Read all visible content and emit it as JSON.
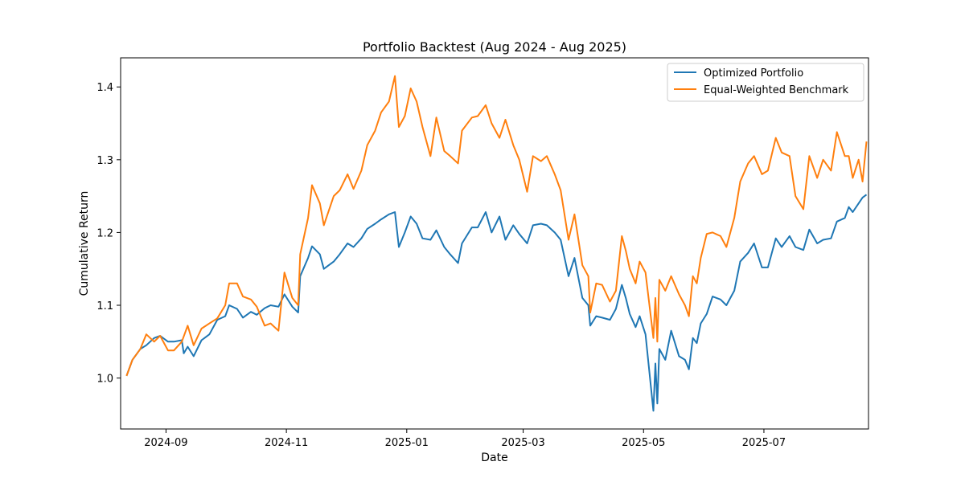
{
  "chart_data": {
    "type": "line",
    "title": "Portfolio Backtest (Aug 2024 - Aug 2025)",
    "xlabel": "Date",
    "ylabel": "Cumulative Return",
    "xlim": [
      "2024-08-09",
      "2025-08-23"
    ],
    "ylim": [
      0.93,
      1.44
    ],
    "x_ticks": [
      "2024-09",
      "2024-11",
      "2025-01",
      "2025-03",
      "2025-05",
      "2025-07"
    ],
    "y_ticks": [
      "1.0",
      "1.1",
      "1.2",
      "1.3",
      "1.4"
    ],
    "grid": false,
    "legend_position": "upper right",
    "series": [
      {
        "name": "Optimized Portfolio",
        "color": "#1f77b4",
        "points": [
          [
            "2024-08-12",
            1.003
          ],
          [
            "2024-08-15",
            1.025
          ],
          [
            "2024-08-19",
            1.04
          ],
          [
            "2024-08-22",
            1.045
          ],
          [
            "2024-08-26",
            1.055
          ],
          [
            "2024-08-29",
            1.058
          ],
          [
            "2024-09-02",
            1.05
          ],
          [
            "2024-09-05",
            1.05
          ],
          [
            "2024-09-09",
            1.052
          ],
          [
            "2024-09-10",
            1.034
          ],
          [
            "2024-09-12",
            1.043
          ],
          [
            "2024-09-15",
            1.03
          ],
          [
            "2024-09-19",
            1.052
          ],
          [
            "2024-09-23",
            1.06
          ],
          [
            "2024-09-27",
            1.08
          ],
          [
            "2024-10-01",
            1.085
          ],
          [
            "2024-10-03",
            1.1
          ],
          [
            "2024-10-07",
            1.095
          ],
          [
            "2024-10-10",
            1.083
          ],
          [
            "2024-10-14",
            1.091
          ],
          [
            "2024-10-17",
            1.087
          ],
          [
            "2024-10-21",
            1.096
          ],
          [
            "2024-10-24",
            1.1
          ],
          [
            "2024-10-28",
            1.098
          ],
          [
            "2024-10-31",
            1.115
          ],
          [
            "2024-11-04",
            1.098
          ],
          [
            "2024-11-07",
            1.09
          ],
          [
            "2024-11-08",
            1.14
          ],
          [
            "2024-11-12",
            1.165
          ],
          [
            "2024-11-14",
            1.181
          ],
          [
            "2024-11-18",
            1.17
          ],
          [
            "2024-11-20",
            1.15
          ],
          [
            "2024-11-25",
            1.16
          ],
          [
            "2024-11-28",
            1.17
          ],
          [
            "2024-12-02",
            1.185
          ],
          [
            "2024-12-05",
            1.18
          ],
          [
            "2024-12-09",
            1.192
          ],
          [
            "2024-12-12",
            1.205
          ],
          [
            "2024-12-16",
            1.212
          ],
          [
            "2024-12-19",
            1.218
          ],
          [
            "2024-12-23",
            1.225
          ],
          [
            "2024-12-26",
            1.228
          ],
          [
            "2024-12-28",
            1.18
          ],
          [
            "2024-12-31",
            1.2
          ],
          [
            "2025-01-03",
            1.222
          ],
          [
            "2025-01-06",
            1.212
          ],
          [
            "2025-01-09",
            1.192
          ],
          [
            "2025-01-13",
            1.19
          ],
          [
            "2025-01-16",
            1.203
          ],
          [
            "2025-01-20",
            1.18
          ],
          [
            "2025-01-23",
            1.17
          ],
          [
            "2025-01-27",
            1.158
          ],
          [
            "2025-01-29",
            1.185
          ],
          [
            "2025-02-03",
            1.207
          ],
          [
            "2025-02-06",
            1.207
          ],
          [
            "2025-02-10",
            1.228
          ],
          [
            "2025-02-13",
            1.2
          ],
          [
            "2025-02-17",
            1.222
          ],
          [
            "2025-02-20",
            1.19
          ],
          [
            "2025-02-24",
            1.21
          ],
          [
            "2025-02-27",
            1.198
          ],
          [
            "2025-03-03",
            1.185
          ],
          [
            "2025-03-06",
            1.21
          ],
          [
            "2025-03-10",
            1.212
          ],
          [
            "2025-03-13",
            1.21
          ],
          [
            "2025-03-17",
            1.2
          ],
          [
            "2025-03-20",
            1.19
          ],
          [
            "2025-03-24",
            1.14
          ],
          [
            "2025-03-27",
            1.165
          ],
          [
            "2025-03-31",
            1.11
          ],
          [
            "2025-04-03",
            1.1
          ],
          [
            "2025-04-04",
            1.072
          ],
          [
            "2025-04-07",
            1.085
          ],
          [
            "2025-04-10",
            1.083
          ],
          [
            "2025-04-14",
            1.08
          ],
          [
            "2025-04-17",
            1.095
          ],
          [
            "2025-04-20",
            1.128
          ],
          [
            "2025-04-22",
            1.11
          ],
          [
            "2025-04-24",
            1.088
          ],
          [
            "2025-04-27",
            1.07
          ],
          [
            "2025-04-29",
            1.085
          ],
          [
            "2025-05-02",
            1.06
          ],
          [
            "2025-05-06",
            0.955
          ],
          [
            "2025-05-07",
            1.02
          ],
          [
            "2025-05-08",
            0.965
          ],
          [
            "2025-05-09",
            1.04
          ],
          [
            "2025-05-12",
            1.025
          ],
          [
            "2025-05-15",
            1.065
          ],
          [
            "2025-05-19",
            1.03
          ],
          [
            "2025-05-22",
            1.025
          ],
          [
            "2025-05-24",
            1.012
          ],
          [
            "2025-05-26",
            1.055
          ],
          [
            "2025-05-28",
            1.048
          ],
          [
            "2025-05-30",
            1.075
          ],
          [
            "2025-06-02",
            1.088
          ],
          [
            "2025-06-05",
            1.112
          ],
          [
            "2025-06-09",
            1.108
          ],
          [
            "2025-06-12",
            1.1
          ],
          [
            "2025-06-16",
            1.12
          ],
          [
            "2025-06-19",
            1.16
          ],
          [
            "2025-06-23",
            1.172
          ],
          [
            "2025-06-26",
            1.185
          ],
          [
            "2025-06-30",
            1.152
          ],
          [
            "2025-07-03",
            1.152
          ],
          [
            "2025-07-07",
            1.192
          ],
          [
            "2025-07-10",
            1.18
          ],
          [
            "2025-07-14",
            1.195
          ],
          [
            "2025-07-17",
            1.18
          ],
          [
            "2025-07-21",
            1.176
          ],
          [
            "2025-07-24",
            1.204
          ],
          [
            "2025-07-28",
            1.185
          ],
          [
            "2025-07-31",
            1.19
          ],
          [
            "2025-08-04",
            1.192
          ],
          [
            "2025-08-07",
            1.215
          ],
          [
            "2025-08-11",
            1.22
          ],
          [
            "2025-08-13",
            1.235
          ],
          [
            "2025-08-15",
            1.228
          ],
          [
            "2025-08-18",
            1.24
          ],
          [
            "2025-08-20",
            1.248
          ],
          [
            "2025-08-22",
            1.252
          ]
        ]
      },
      {
        "name": "Equal-Weighted Benchmark",
        "color": "#ff7f0e",
        "points": [
          [
            "2024-08-12",
            1.003
          ],
          [
            "2024-08-15",
            1.025
          ],
          [
            "2024-08-19",
            1.04
          ],
          [
            "2024-08-22",
            1.06
          ],
          [
            "2024-08-26",
            1.05
          ],
          [
            "2024-08-29",
            1.058
          ],
          [
            "2024-09-02",
            1.038
          ],
          [
            "2024-09-05",
            1.038
          ],
          [
            "2024-09-09",
            1.05
          ],
          [
            "2024-09-12",
            1.072
          ],
          [
            "2024-09-15",
            1.045
          ],
          [
            "2024-09-19",
            1.068
          ],
          [
            "2024-09-23",
            1.075
          ],
          [
            "2024-09-27",
            1.082
          ],
          [
            "2024-10-01",
            1.1
          ],
          [
            "2024-10-03",
            1.13
          ],
          [
            "2024-10-07",
            1.13
          ],
          [
            "2024-10-10",
            1.112
          ],
          [
            "2024-10-14",
            1.108
          ],
          [
            "2024-10-17",
            1.098
          ],
          [
            "2024-10-21",
            1.072
          ],
          [
            "2024-10-24",
            1.075
          ],
          [
            "2024-10-28",
            1.065
          ],
          [
            "2024-10-31",
            1.145
          ],
          [
            "2024-11-04",
            1.11
          ],
          [
            "2024-11-07",
            1.1
          ],
          [
            "2024-11-08",
            1.17
          ],
          [
            "2024-11-12",
            1.22
          ],
          [
            "2024-11-14",
            1.265
          ],
          [
            "2024-11-18",
            1.24
          ],
          [
            "2024-11-20",
            1.21
          ],
          [
            "2024-11-25",
            1.25
          ],
          [
            "2024-11-28",
            1.258
          ],
          [
            "2024-12-02",
            1.28
          ],
          [
            "2024-12-05",
            1.26
          ],
          [
            "2024-12-09",
            1.285
          ],
          [
            "2024-12-12",
            1.32
          ],
          [
            "2024-12-16",
            1.34
          ],
          [
            "2024-12-19",
            1.365
          ],
          [
            "2024-12-23",
            1.38
          ],
          [
            "2024-12-26",
            1.415
          ],
          [
            "2024-12-28",
            1.345
          ],
          [
            "2024-12-31",
            1.36
          ],
          [
            "2025-01-03",
            1.398
          ],
          [
            "2025-01-06",
            1.38
          ],
          [
            "2025-01-09",
            1.345
          ],
          [
            "2025-01-13",
            1.305
          ],
          [
            "2025-01-16",
            1.358
          ],
          [
            "2025-01-20",
            1.312
          ],
          [
            "2025-01-23",
            1.305
          ],
          [
            "2025-01-27",
            1.295
          ],
          [
            "2025-01-29",
            1.34
          ],
          [
            "2025-02-03",
            1.358
          ],
          [
            "2025-02-06",
            1.36
          ],
          [
            "2025-02-10",
            1.375
          ],
          [
            "2025-02-13",
            1.35
          ],
          [
            "2025-02-17",
            1.33
          ],
          [
            "2025-02-20",
            1.355
          ],
          [
            "2025-02-24",
            1.32
          ],
          [
            "2025-02-27",
            1.3
          ],
          [
            "2025-03-03",
            1.256
          ],
          [
            "2025-03-06",
            1.305
          ],
          [
            "2025-03-10",
            1.298
          ],
          [
            "2025-03-13",
            1.305
          ],
          [
            "2025-03-17",
            1.28
          ],
          [
            "2025-03-20",
            1.258
          ],
          [
            "2025-03-24",
            1.19
          ],
          [
            "2025-03-27",
            1.225
          ],
          [
            "2025-03-31",
            1.155
          ],
          [
            "2025-04-03",
            1.14
          ],
          [
            "2025-04-04",
            1.09
          ],
          [
            "2025-04-07",
            1.13
          ],
          [
            "2025-04-10",
            1.128
          ],
          [
            "2025-04-14",
            1.105
          ],
          [
            "2025-04-17",
            1.12
          ],
          [
            "2025-04-20",
            1.195
          ],
          [
            "2025-04-22",
            1.175
          ],
          [
            "2025-04-24",
            1.15
          ],
          [
            "2025-04-27",
            1.13
          ],
          [
            "2025-04-29",
            1.16
          ],
          [
            "2025-05-02",
            1.145
          ],
          [
            "2025-05-06",
            1.055
          ],
          [
            "2025-05-07",
            1.11
          ],
          [
            "2025-05-08",
            1.05
          ],
          [
            "2025-05-09",
            1.135
          ],
          [
            "2025-05-12",
            1.12
          ],
          [
            "2025-05-15",
            1.14
          ],
          [
            "2025-05-19",
            1.115
          ],
          [
            "2025-05-22",
            1.1
          ],
          [
            "2025-05-24",
            1.085
          ],
          [
            "2025-05-26",
            1.14
          ],
          [
            "2025-05-28",
            1.13
          ],
          [
            "2025-05-30",
            1.165
          ],
          [
            "2025-06-02",
            1.198
          ],
          [
            "2025-06-05",
            1.2
          ],
          [
            "2025-06-09",
            1.195
          ],
          [
            "2025-06-12",
            1.18
          ],
          [
            "2025-06-16",
            1.22
          ],
          [
            "2025-06-19",
            1.27
          ],
          [
            "2025-06-23",
            1.295
          ],
          [
            "2025-06-26",
            1.305
          ],
          [
            "2025-06-30",
            1.28
          ],
          [
            "2025-07-03",
            1.285
          ],
          [
            "2025-07-07",
            1.33
          ],
          [
            "2025-07-10",
            1.31
          ],
          [
            "2025-07-14",
            1.305
          ],
          [
            "2025-07-17",
            1.25
          ],
          [
            "2025-07-21",
            1.232
          ],
          [
            "2025-07-24",
            1.305
          ],
          [
            "2025-07-28",
            1.275
          ],
          [
            "2025-07-31",
            1.3
          ],
          [
            "2025-08-04",
            1.285
          ],
          [
            "2025-08-07",
            1.338
          ],
          [
            "2025-08-11",
            1.305
          ],
          [
            "2025-08-13",
            1.305
          ],
          [
            "2025-08-15",
            1.275
          ],
          [
            "2025-08-18",
            1.3
          ],
          [
            "2025-08-20",
            1.27
          ],
          [
            "2025-08-22",
            1.325
          ]
        ]
      }
    ]
  }
}
